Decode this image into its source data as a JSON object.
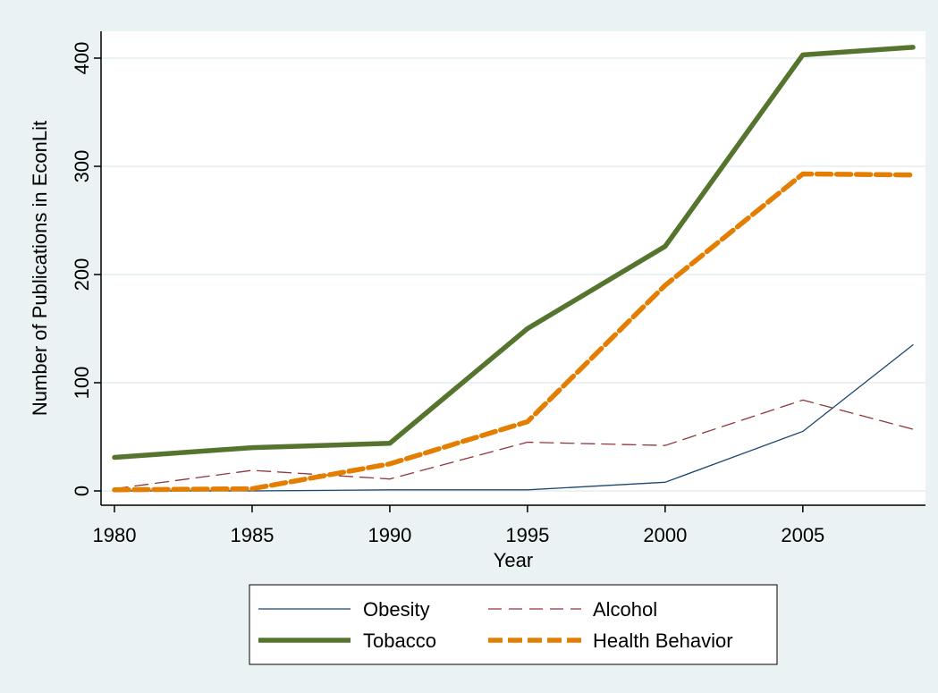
{
  "chart_data": {
    "type": "line",
    "title": "",
    "xlabel": "Year",
    "ylabel": "Number of Publications in EconLit",
    "x": [
      1980,
      1985,
      1990,
      1995,
      2000,
      2005,
      2009
    ],
    "xticks": [
      1980,
      1985,
      1990,
      1995,
      2000,
      2005
    ],
    "yticks": [
      0,
      100,
      200,
      300,
      400
    ],
    "xlim": [
      1980,
      2009
    ],
    "ylim": [
      0,
      400
    ],
    "grid": true,
    "legend_position": "bottom",
    "series": [
      {
        "name": "Obesity",
        "values": [
          0,
          0,
          1,
          1,
          8,
          55,
          135
        ],
        "color": "#1a476f",
        "style": "thin-solid"
      },
      {
        "name": "Alcohol",
        "values": [
          2,
          19,
          11,
          45,
          42,
          84,
          57
        ],
        "color": "#90353b",
        "style": "thin-dashed"
      },
      {
        "name": "Tobacco",
        "values": [
          31,
          40,
          44,
          150,
          226,
          403,
          410
        ],
        "color": "#55752f",
        "style": "thick-solid"
      },
      {
        "name": "Health Behavior",
        "values": [
          1,
          2,
          25,
          64,
          190,
          293,
          292
        ],
        "color": "#e37e00",
        "style": "thick-dashed"
      }
    ],
    "colors": {
      "background": "#eaf2f3",
      "plot_background": "#ffffff",
      "grid": "#eaf2f3"
    }
  }
}
